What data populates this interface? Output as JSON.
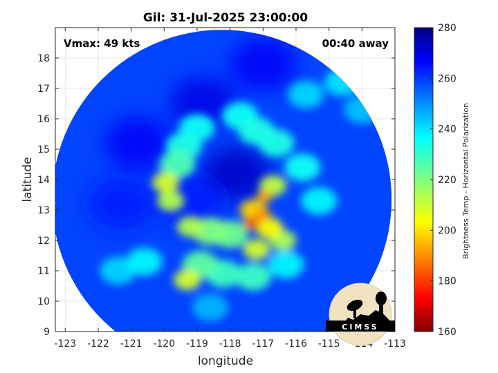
{
  "chart_data": {
    "type": "heatmap",
    "title": "Gil: 31-Jul-2025 23:00:00",
    "xlabel": "longitude",
    "ylabel": "latitude",
    "xlim": [
      -123.3,
      -113
    ],
    "ylim": [
      9,
      19
    ],
    "x_ticks": [
      -123,
      -122,
      -121,
      -120,
      -119,
      -118,
      -117,
      -116,
      -115,
      -114,
      -113
    ],
    "y_ticks": [
      9,
      10,
      11,
      12,
      13,
      14,
      15,
      16,
      17,
      18
    ],
    "grid": true,
    "annotations": {
      "vmax": "Vmax: 49 kts",
      "time_offset": "00:40 away"
    },
    "colorbar": {
      "label": "Brightness Temp - Horizontal Polarization",
      "range": [
        160,
        280
      ],
      "ticks": [
        160,
        180,
        200,
        220,
        240,
        260,
        280
      ],
      "colormap": "jet"
    },
    "swath": {
      "center_lon": -118.25,
      "center_lat": 13.35,
      "radius_deg": 5.15
    },
    "storm_center": {
      "lon": -117.9,
      "lat": 14.1
    },
    "features": [
      {
        "lon": -117.35,
        "lat": 12.55,
        "value": 185
      },
      {
        "lon": -117.0,
        "lat": 12.85,
        "value": 192
      },
      {
        "lon": -116.95,
        "lat": 13.45,
        "value": 195
      },
      {
        "lon": -117.3,
        "lat": 13.0,
        "value": 200
      },
      {
        "lon": -116.8,
        "lat": 12.4,
        "value": 205
      },
      {
        "lon": -116.7,
        "lat": 13.8,
        "value": 212
      },
      {
        "lon": -117.2,
        "lat": 11.7,
        "value": 210
      },
      {
        "lon": -116.4,
        "lat": 12.0,
        "value": 215
      },
      {
        "lon": -118.0,
        "lat": 12.2,
        "value": 222
      },
      {
        "lon": -118.6,
        "lat": 12.3,
        "value": 220
      },
      {
        "lon": -119.2,
        "lat": 12.45,
        "value": 214
      },
      {
        "lon": -119.8,
        "lat": 13.3,
        "value": 214
      },
      {
        "lon": -119.95,
        "lat": 13.9,
        "value": 210
      },
      {
        "lon": -119.6,
        "lat": 14.5,
        "value": 226
      },
      {
        "lon": -119.4,
        "lat": 15.1,
        "value": 232
      },
      {
        "lon": -119.0,
        "lat": 15.7,
        "value": 234
      },
      {
        "lon": -117.7,
        "lat": 16.1,
        "value": 234
      },
      {
        "lon": -117.2,
        "lat": 15.6,
        "value": 232
      },
      {
        "lon": -116.6,
        "lat": 15.2,
        "value": 232
      },
      {
        "lon": -115.8,
        "lat": 14.4,
        "value": 234
      },
      {
        "lon": -115.3,
        "lat": 13.3,
        "value": 236
      },
      {
        "lon": -118.9,
        "lat": 11.2,
        "value": 224
      },
      {
        "lon": -119.3,
        "lat": 10.7,
        "value": 210
      },
      {
        "lon": -118.2,
        "lat": 10.9,
        "value": 228
      },
      {
        "lon": -117.3,
        "lat": 10.8,
        "value": 228
      },
      {
        "lon": -120.6,
        "lat": 11.3,
        "value": 236
      },
      {
        "lon": -121.4,
        "lat": 11.0,
        "value": 240
      },
      {
        "lon": -115.7,
        "lat": 16.8,
        "value": 240
      },
      {
        "lon": -114.6,
        "lat": 17.2,
        "value": 238
      },
      {
        "lon": -114.0,
        "lat": 16.3,
        "value": 242
      },
      {
        "lon": -116.3,
        "lat": 11.2,
        "value": 236
      },
      {
        "lon": -118.6,
        "lat": 9.8,
        "value": 244
      }
    ],
    "dark_zones": [
      {
        "lon": -117.8,
        "lat": 14.2,
        "value": 272
      },
      {
        "lon": -118.8,
        "lat": 16.5,
        "value": 268
      },
      {
        "lon": -120.8,
        "lat": 15.2,
        "value": 266
      },
      {
        "lon": -121.3,
        "lat": 13.2,
        "value": 262
      },
      {
        "lon": -117.0,
        "lat": 17.8,
        "value": 266
      },
      {
        "lon": -119.2,
        "lat": 13.3,
        "value": 262
      }
    ]
  },
  "logo": {
    "text": "CIMSS"
  }
}
